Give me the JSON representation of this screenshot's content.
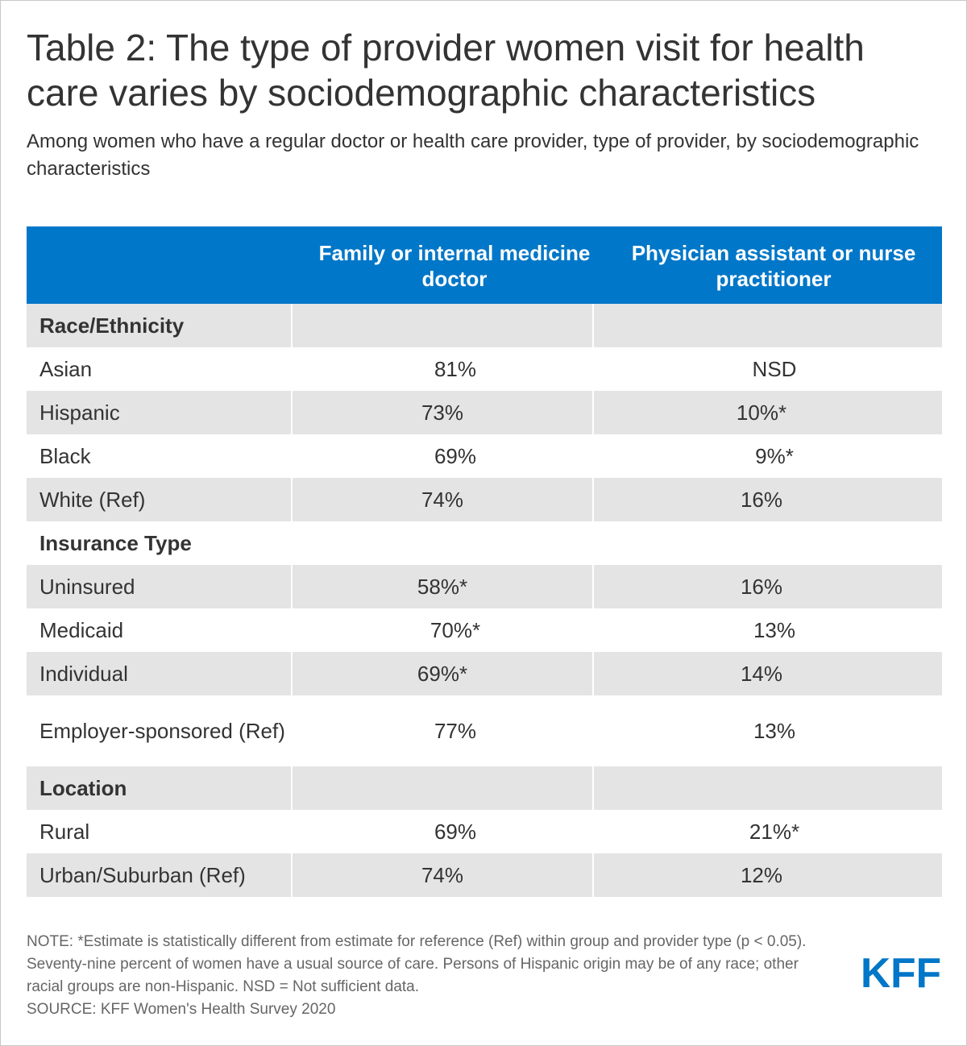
{
  "title": "Table 2: The type of provider women visit for health care varies by sociodemographic characteristics",
  "subtitle": "Among women who have a regular doctor or health care provider, type of provider, by sociodemographic characteristics",
  "colors": {
    "header_bg": "#0077c8",
    "row_shade": "#e4e4e4",
    "logo": "#0077c8"
  },
  "chart_data": {
    "type": "table",
    "columns": [
      "",
      "Family or internal medicine doctor",
      "Physician assistant or nurse practitioner"
    ],
    "groups": [
      {
        "label": "Race/Ethnicity",
        "rows": [
          {
            "label": "Asian",
            "family": "81%",
            "pa_np": "NSD"
          },
          {
            "label": "Hispanic",
            "family": "73%",
            "pa_np": "10%*"
          },
          {
            "label": "Black",
            "family": "69%",
            "pa_np": "9%*"
          },
          {
            "label": "White (Ref)",
            "family": "74%",
            "pa_np": "16%"
          }
        ]
      },
      {
        "label": "Insurance Type",
        "rows": [
          {
            "label": "Uninsured",
            "family": "58%*",
            "pa_np": "16%"
          },
          {
            "label": "Medicaid",
            "family": "70%*",
            "pa_np": "13%"
          },
          {
            "label": "Individual",
            "family": "69%*",
            "pa_np": "14%"
          },
          {
            "label": "Employer-sponsored (Ref)",
            "family": "77%",
            "pa_np": "13%"
          }
        ]
      },
      {
        "label": "Location",
        "rows": [
          {
            "label": "Rural",
            "family": "69%",
            "pa_np": "21%*"
          },
          {
            "label": "Urban/Suburban (Ref)",
            "family": "74%",
            "pa_np": "12%"
          }
        ]
      }
    ]
  },
  "note": "NOTE: *Estimate is statistically different from estimate for reference (Ref) within group and provider type (p < 0.05). Seventy-nine percent of women have a usual source of care. Persons of Hispanic origin may be of any race; other racial groups are non-Hispanic. NSD = Not sufficient data.",
  "source": "SOURCE: KFF Women's Health Survey 2020",
  "logo_text": "KFF"
}
